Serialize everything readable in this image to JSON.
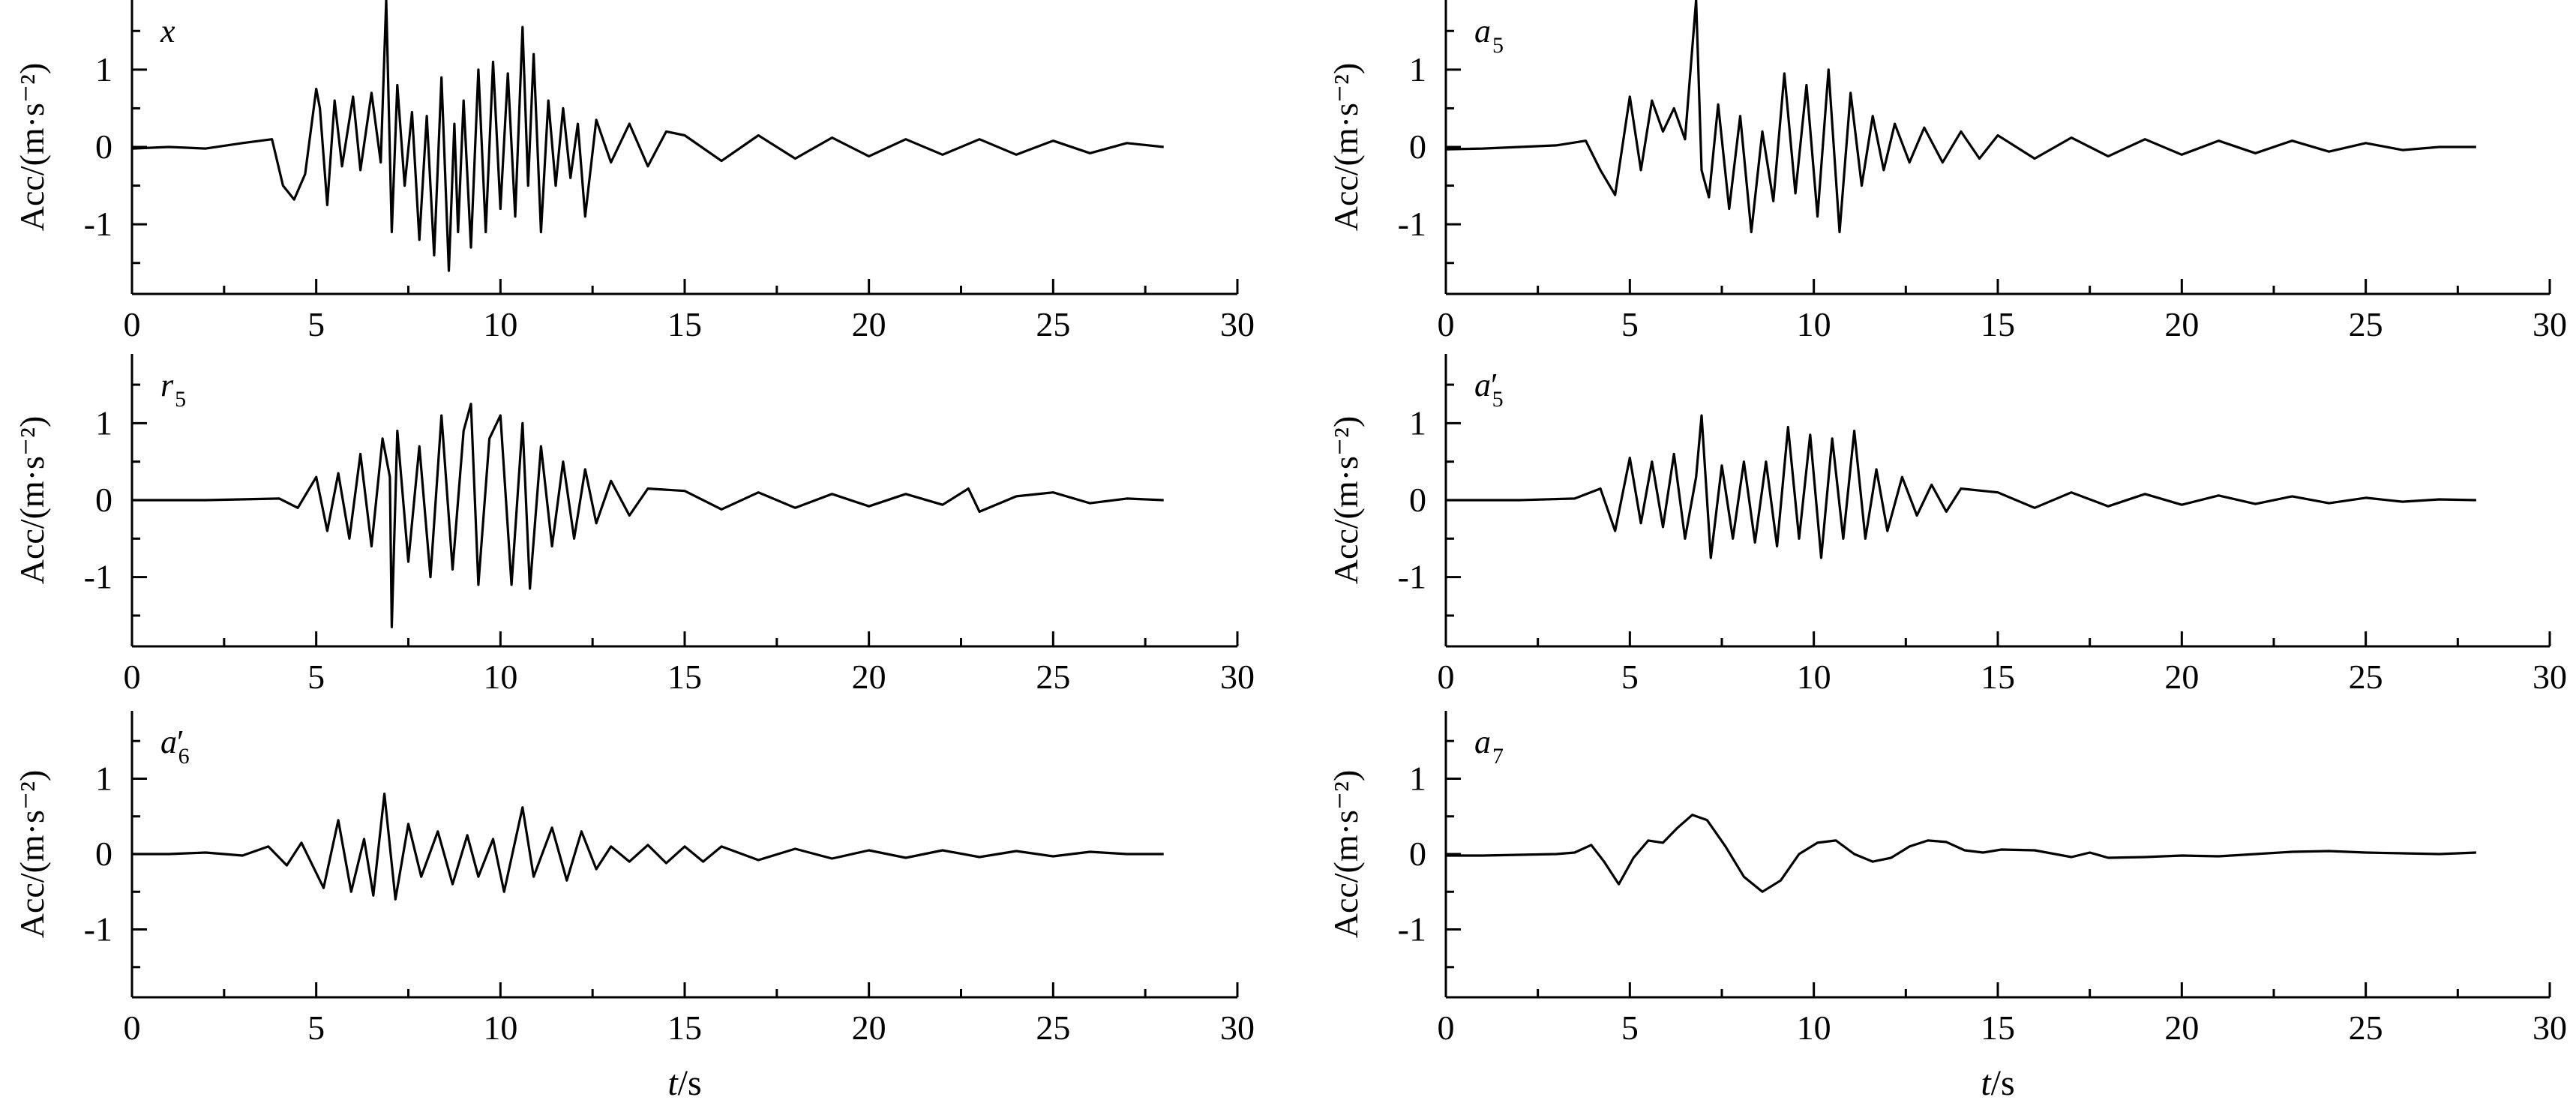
{
  "chart_data": [
    {
      "type": "line",
      "panel_label": {
        "base": "x",
        "sub": "",
        "prime": false
      },
      "ylabel": "Acc/(m·s⁻²)",
      "xlabel": "",
      "xlim": [
        0,
        30
      ],
      "ylim": [
        -1.9,
        1.9
      ],
      "x_ticks": [
        0,
        5,
        10,
        15,
        20,
        25,
        30
      ],
      "y_ticks": [
        -1,
        0,
        1
      ],
      "grid": false,
      "series": [
        {
          "x": [
            0,
            1,
            2,
            3,
            3.8,
            4.1,
            4.4,
            4.7,
            5.0,
            5.1,
            5.3,
            5.5,
            5.7,
            6.0,
            6.2,
            6.5,
            6.75,
            6.9,
            7.05,
            7.2,
            7.4,
            7.6,
            7.8,
            8.0,
            8.2,
            8.4,
            8.6,
            8.75,
            8.85,
            9.0,
            9.2,
            9.4,
            9.6,
            9.8,
            10.0,
            10.2,
            10.4,
            10.6,
            10.75,
            10.9,
            11.1,
            11.3,
            11.5,
            11.7,
            11.9,
            12.1,
            12.3,
            12.6,
            13.0,
            13.5,
            14.0,
            14.5,
            15,
            16,
            17,
            18,
            19,
            20,
            21,
            22,
            23,
            24,
            25,
            26,
            27,
            28
          ],
          "values": [
            -0.02,
            0.0,
            -0.02,
            0.05,
            0.1,
            -0.5,
            -0.68,
            -0.35,
            0.75,
            0.5,
            -0.75,
            0.6,
            -0.25,
            0.65,
            -0.3,
            0.7,
            -0.2,
            1.9,
            -1.1,
            0.8,
            -0.5,
            0.45,
            -1.2,
            0.4,
            -1.4,
            0.9,
            -1.6,
            0.3,
            -1.1,
            0.6,
            -1.3,
            1.0,
            -1.1,
            1.1,
            -0.8,
            0.95,
            -0.9,
            1.55,
            -0.5,
            1.2,
            -1.1,
            0.6,
            -0.5,
            0.5,
            -0.4,
            0.3,
            -0.9,
            0.35,
            -0.2,
            0.3,
            -0.25,
            0.2,
            0.15,
            -0.18,
            0.15,
            -0.15,
            0.12,
            -0.12,
            0.1,
            -0.1,
            0.1,
            -0.1,
            0.08,
            -0.08,
            0.05,
            0.0
          ]
        }
      ]
    },
    {
      "type": "line",
      "panel_label": {
        "base": "a",
        "sub": "5",
        "prime": false
      },
      "ylabel": "Acc/(m·s⁻²)",
      "xlabel": "",
      "xlim": [
        0,
        30
      ],
      "ylim": [
        -1.9,
        1.9
      ],
      "x_ticks": [
        0,
        5,
        10,
        15,
        20,
        25,
        30
      ],
      "y_ticks": [
        -1,
        0,
        1
      ],
      "grid": false,
      "series": [
        {
          "x": [
            0,
            1,
            2,
            3,
            3.8,
            4.2,
            4.6,
            5.0,
            5.3,
            5.6,
            5.9,
            6.2,
            6.5,
            6.8,
            6.95,
            7.15,
            7.4,
            7.7,
            8.0,
            8.3,
            8.6,
            8.9,
            9.2,
            9.5,
            9.8,
            10.1,
            10.4,
            10.7,
            11.0,
            11.3,
            11.6,
            11.9,
            12.2,
            12.6,
            13.0,
            13.5,
            14.0,
            14.5,
            15,
            16,
            17,
            18,
            19,
            20,
            21,
            22,
            23,
            24,
            25,
            26,
            27,
            28
          ],
          "values": [
            -0.03,
            -0.02,
            0.0,
            0.02,
            0.08,
            -0.3,
            -0.62,
            0.65,
            -0.3,
            0.6,
            0.2,
            0.5,
            0.1,
            1.9,
            -0.3,
            -0.65,
            0.55,
            -0.8,
            0.4,
            -1.1,
            0.2,
            -0.7,
            0.95,
            -0.6,
            0.8,
            -0.9,
            1.0,
            -1.1,
            0.7,
            -0.5,
            0.4,
            -0.3,
            0.3,
            -0.2,
            0.25,
            -0.2,
            0.2,
            -0.15,
            0.15,
            -0.15,
            0.12,
            -0.12,
            0.1,
            -0.1,
            0.08,
            -0.08,
            0.08,
            -0.06,
            0.05,
            -0.04,
            0.0,
            0.0
          ]
        }
      ]
    },
    {
      "type": "line",
      "panel_label": {
        "base": "r",
        "sub": "5",
        "prime": false
      },
      "ylabel": "Acc/(m·s⁻²)",
      "xlabel": "",
      "xlim": [
        0,
        30
      ],
      "ylim": [
        -1.9,
        1.9
      ],
      "x_ticks": [
        0,
        5,
        10,
        15,
        20,
        25,
        30
      ],
      "y_ticks": [
        -1,
        0,
        1
      ],
      "grid": false,
      "series": [
        {
          "x": [
            0,
            2,
            4,
            4.5,
            5.0,
            5.3,
            5.6,
            5.9,
            6.2,
            6.5,
            6.8,
            7.0,
            7.05,
            7.2,
            7.5,
            7.8,
            8.1,
            8.4,
            8.7,
            9.0,
            9.2,
            9.4,
            9.7,
            10.0,
            10.3,
            10.6,
            10.8,
            11.1,
            11.4,
            11.7,
            12.0,
            12.3,
            12.6,
            13.0,
            13.5,
            14.0,
            15,
            16,
            17,
            18,
            19,
            20,
            21,
            22,
            22.7,
            23,
            24,
            25,
            26,
            27,
            28
          ],
          "values": [
            0.0,
            0.0,
            0.02,
            -0.1,
            0.3,
            -0.4,
            0.35,
            -0.5,
            0.6,
            -0.6,
            0.8,
            0.3,
            -1.65,
            0.9,
            -0.8,
            0.7,
            -1.0,
            1.1,
            -0.9,
            0.9,
            1.25,
            -1.1,
            0.8,
            1.1,
            -1.1,
            1.0,
            -1.15,
            0.7,
            -0.6,
            0.5,
            -0.5,
            0.4,
            -0.3,
            0.25,
            -0.2,
            0.15,
            0.12,
            -0.12,
            0.1,
            -0.1,
            0.08,
            -0.08,
            0.08,
            -0.06,
            0.15,
            -0.15,
            0.05,
            0.1,
            -0.04,
            0.02,
            0.0
          ]
        }
      ]
    },
    {
      "type": "line",
      "panel_label": {
        "base": "a",
        "sub": "5",
        "prime": true
      },
      "ylabel": "Acc/(m·s⁻²)",
      "xlabel": "",
      "xlim": [
        0,
        30
      ],
      "ylim": [
        -1.9,
        1.9
      ],
      "x_ticks": [
        0,
        5,
        10,
        15,
        20,
        25,
        30
      ],
      "y_ticks": [
        -1,
        0,
        1
      ],
      "grid": false,
      "series": [
        {
          "x": [
            0,
            2,
            3.5,
            4.2,
            4.6,
            5.0,
            5.3,
            5.6,
            5.9,
            6.2,
            6.5,
            6.8,
            6.95,
            7.2,
            7.5,
            7.8,
            8.1,
            8.4,
            8.7,
            9.0,
            9.3,
            9.6,
            9.9,
            10.2,
            10.5,
            10.8,
            11.1,
            11.4,
            11.7,
            12.0,
            12.4,
            12.8,
            13.2,
            13.6,
            14.0,
            15,
            16,
            17,
            18,
            19,
            20,
            21,
            22,
            23,
            24,
            25,
            26,
            27,
            28
          ],
          "values": [
            0.0,
            0.0,
            0.02,
            0.15,
            -0.4,
            0.55,
            -0.3,
            0.5,
            -0.35,
            0.6,
            -0.5,
            0.3,
            1.1,
            -0.75,
            0.45,
            -0.5,
            0.5,
            -0.55,
            0.5,
            -0.6,
            0.95,
            -0.5,
            0.85,
            -0.75,
            0.8,
            -0.5,
            0.9,
            -0.5,
            0.4,
            -0.4,
            0.3,
            -0.2,
            0.2,
            -0.15,
            0.15,
            0.1,
            -0.1,
            0.1,
            -0.08,
            0.08,
            -0.06,
            0.06,
            -0.05,
            0.05,
            -0.04,
            0.03,
            -0.02,
            0.01,
            0.0
          ]
        }
      ]
    },
    {
      "type": "line",
      "panel_label": {
        "base": "a",
        "sub": "6",
        "prime": true
      },
      "ylabel": "Acc/(m·s⁻²)",
      "xlabel": "t/s",
      "xlim": [
        0,
        30
      ],
      "ylim": [
        -1.9,
        1.9
      ],
      "x_ticks": [
        0,
        5,
        10,
        15,
        20,
        25,
        30
      ],
      "y_ticks": [
        -1,
        0,
        1
      ],
      "grid": false,
      "series": [
        {
          "x": [
            0,
            1,
            2,
            3,
            3.7,
            4.2,
            4.6,
            5.2,
            5.6,
            5.95,
            6.3,
            6.55,
            6.85,
            7.15,
            7.5,
            7.85,
            8.3,
            8.7,
            9.1,
            9.4,
            9.8,
            10.1,
            10.6,
            10.9,
            11.4,
            11.8,
            12.2,
            12.6,
            13.0,
            13.5,
            14.0,
            14.5,
            15,
            15.5,
            16,
            17,
            18,
            19,
            20,
            21,
            22,
            23,
            24,
            25,
            26,
            27,
            28
          ],
          "values": [
            0.0,
            0.0,
            0.02,
            -0.02,
            0.1,
            -0.15,
            0.15,
            -0.45,
            0.45,
            -0.5,
            0.2,
            -0.55,
            0.8,
            -0.6,
            0.4,
            -0.3,
            0.3,
            -0.4,
            0.25,
            -0.3,
            0.2,
            -0.5,
            0.62,
            -0.3,
            0.35,
            -0.35,
            0.3,
            -0.2,
            0.1,
            -0.1,
            0.12,
            -0.12,
            0.1,
            -0.1,
            0.1,
            -0.08,
            0.07,
            -0.06,
            0.05,
            -0.05,
            0.05,
            -0.04,
            0.04,
            -0.03,
            0.03,
            0.0,
            0.0
          ]
        }
      ]
    },
    {
      "type": "line",
      "panel_label": {
        "base": "a",
        "sub": "7",
        "prime": false
      },
      "ylabel": "Acc/(m·s⁻²)",
      "xlabel": "t/s",
      "xlim": [
        0,
        30
      ],
      "ylim": [
        -1.9,
        1.9
      ],
      "x_ticks": [
        0,
        5,
        10,
        15,
        20,
        25,
        30
      ],
      "y_ticks": [
        -1,
        0,
        1
      ],
      "grid": false,
      "series": [
        {
          "x": [
            0,
            1,
            2,
            3,
            3.5,
            3.95,
            4.3,
            4.7,
            5.1,
            5.5,
            5.9,
            6.3,
            6.7,
            7.1,
            7.6,
            8.1,
            8.6,
            9.1,
            9.6,
            10.1,
            10.6,
            11.1,
            11.6,
            12.1,
            12.6,
            13.1,
            13.6,
            14.1,
            14.6,
            15.1,
            16,
            17,
            17.5,
            18,
            19,
            20,
            21,
            22,
            23,
            24,
            25,
            26,
            27,
            28
          ],
          "values": [
            -0.02,
            -0.02,
            -0.01,
            0.0,
            0.02,
            0.12,
            -0.1,
            -0.4,
            -0.05,
            0.18,
            0.15,
            0.35,
            0.52,
            0.45,
            0.1,
            -0.3,
            -0.5,
            -0.35,
            0.0,
            0.15,
            0.18,
            0.0,
            -0.1,
            -0.05,
            0.1,
            0.18,
            0.16,
            0.05,
            0.02,
            0.06,
            0.05,
            -0.04,
            0.02,
            -0.05,
            -0.04,
            -0.02,
            -0.03,
            0.0,
            0.03,
            0.04,
            0.02,
            0.01,
            0.0,
            0.02
          ]
        }
      ]
    }
  ]
}
